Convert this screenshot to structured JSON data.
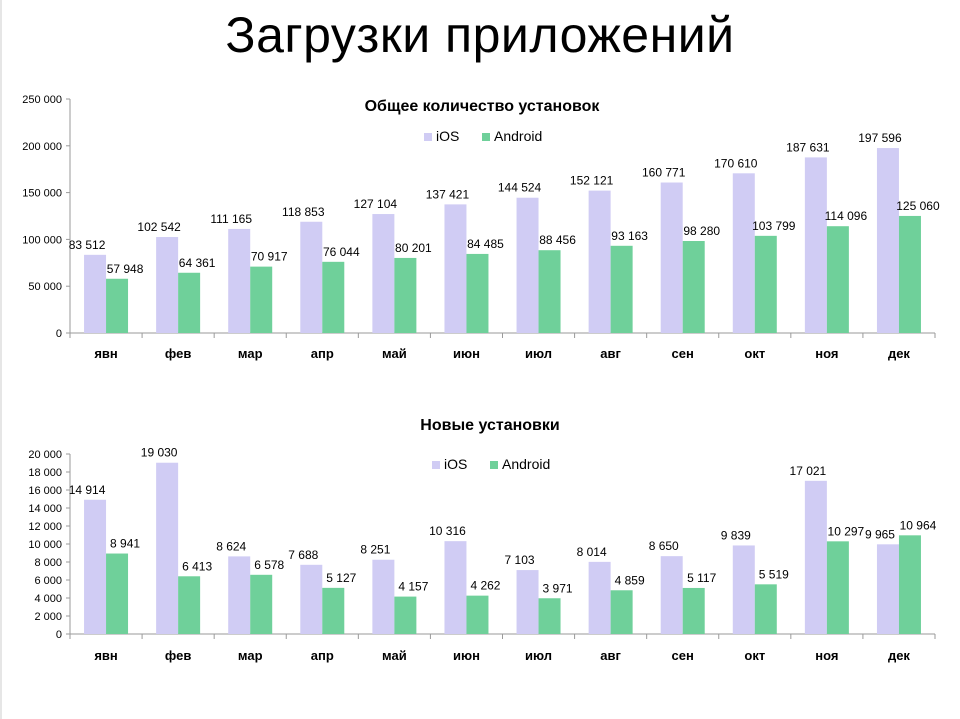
{
  "page": {
    "title": "Загрузки приложений"
  },
  "colors": {
    "ios": "#d0ccf4",
    "android": "#6fd09a",
    "axis": "#9a9a9a"
  },
  "chart_data": [
    {
      "type": "bar",
      "title": "Общее количество установок",
      "categories": [
        "явн",
        "фев",
        "мар",
        "апр",
        "май",
        "июн",
        "июл",
        "авг",
        "сен",
        "окт",
        "ноя",
        "дек"
      ],
      "series": [
        {
          "name": "iOS",
          "values": [
            83512,
            102542,
            111165,
            118853,
            127104,
            137421,
            144524,
            152121,
            160771,
            170610,
            187631,
            197596
          ]
        },
        {
          "name": "Android",
          "values": [
            57948,
            64361,
            70917,
            76044,
            80201,
            84485,
            88456,
            93163,
            98280,
            103799,
            114096,
            125060
          ]
        }
      ],
      "ylim": [
        0,
        250000
      ],
      "yticks": [
        0,
        50000,
        100000,
        150000,
        200000,
        250000
      ],
      "ytick_labels": [
        "0",
        "50 000",
        "100 000",
        "150 000",
        "200 000",
        "250 000"
      ],
      "value_labels": {
        "iOS": [
          "83 512",
          "102 542",
          "111 165",
          "118 853",
          "127 104",
          "137 421",
          "144 524",
          "152 121",
          "160 771",
          "170 610",
          "187 631",
          "197 596"
        ],
        "Android": [
          "57 948",
          "64 361",
          "70 917",
          "76 044",
          "80 201",
          "84 485",
          "88 456",
          "93 163",
          "98 280",
          "103 799",
          "114 096",
          "125 060"
        ]
      },
      "legend": "top-center",
      "xlabel": "",
      "ylabel": ""
    },
    {
      "type": "bar",
      "title": "Новые установки",
      "categories": [
        "явн",
        "фев",
        "мар",
        "апр",
        "май",
        "июн",
        "июл",
        "авг",
        "сен",
        "окт",
        "ноя",
        "дек"
      ],
      "series": [
        {
          "name": "iOS",
          "values": [
            14914,
            19030,
            8624,
            7688,
            8251,
            10316,
            7103,
            8014,
            8650,
            9839,
            17021,
            9965
          ]
        },
        {
          "name": "Android",
          "values": [
            8941,
            6413,
            6578,
            5127,
            4157,
            4262,
            3971,
            4859,
            5117,
            5519,
            10297,
            10964
          ]
        }
      ],
      "ylim": [
        0,
        20000
      ],
      "yticks": [
        0,
        2000,
        4000,
        6000,
        8000,
        10000,
        12000,
        14000,
        16000,
        18000,
        20000
      ],
      "ytick_labels": [
        "0",
        "2 000",
        "4 000",
        "6 000",
        "8 000",
        "10 000",
        "12 000",
        "14 000",
        "16 000",
        "18 000",
        "20 000"
      ],
      "value_labels": {
        "iOS": [
          "14 914",
          "19 030",
          "8 624",
          "7 688",
          "8 251",
          "10 316",
          "7 103",
          "8 014",
          "8 650",
          "9 839",
          "17 021",
          "9 965"
        ],
        "Android": [
          "8 941",
          "6 413",
          "6 578",
          "5 127",
          "4 157",
          "4 262",
          "3 971",
          "4 859",
          "5 117",
          "5 519",
          "10 297",
          "10 964"
        ]
      },
      "legend": "top-center",
      "xlabel": "",
      "ylabel": ""
    }
  ]
}
